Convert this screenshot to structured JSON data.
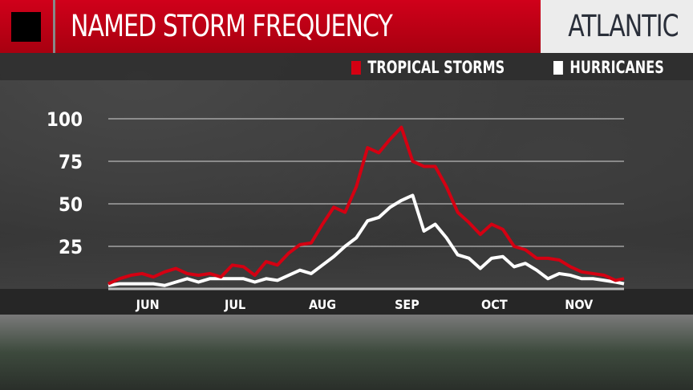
{
  "header": {
    "title": "NAMED STORM FREQUENCY",
    "region": "ATLANTIC"
  },
  "colors": {
    "tropical_storms": "#d40012",
    "hurricanes": "#ffffff",
    "header": "#c20014"
  },
  "icons": {
    "logo": "black-square-icon"
  },
  "chart_data": {
    "type": "line",
    "title": "NAMED STORM FREQUENCY",
    "ylim": [
      0,
      100
    ],
    "yticks": [
      25,
      50,
      75,
      100
    ],
    "ytick_labels": [
      "25",
      "50",
      "75",
      "100"
    ],
    "xlim": [
      "06-01",
      "11-30"
    ],
    "xtick_labels": [
      "JUN",
      "JUL",
      "AUG",
      "SEP",
      "OCT",
      "NOV"
    ],
    "grid": true,
    "legend": "top-right",
    "x": [
      "06-01",
      "06-05",
      "06-09",
      "06-13",
      "06-17",
      "06-21",
      "06-25",
      "06-29",
      "07-03",
      "07-07",
      "07-11",
      "07-15",
      "07-19",
      "07-23",
      "07-27",
      "07-31",
      "08-04",
      "08-08",
      "08-12",
      "08-16",
      "08-20",
      "08-24",
      "08-28",
      "09-01",
      "09-05",
      "09-09",
      "09-13",
      "09-17",
      "09-21",
      "09-25",
      "09-29",
      "10-03",
      "10-07",
      "10-11",
      "10-15",
      "10-19",
      "10-23",
      "10-27",
      "10-31",
      "11-04",
      "11-08",
      "11-12",
      "11-16",
      "11-20",
      "11-24",
      "11-28",
      "12-02"
    ],
    "series": [
      {
        "name": "TROPICAL STORMS",
        "color": "#d40012",
        "values": [
          3,
          6,
          8,
          9,
          7,
          10,
          12,
          9,
          8,
          9,
          7,
          14,
          13,
          8,
          16,
          14,
          21,
          26,
          27,
          38,
          48,
          45,
          60,
          83,
          80,
          88,
          95,
          75,
          72,
          72,
          60,
          45,
          39,
          32,
          38,
          35,
          25,
          23,
          18,
          18,
          17,
          13,
          10,
          9,
          8,
          5,
          6
        ]
      },
      {
        "name": "HURRICANES",
        "color": "#ffffff",
        "values": [
          2,
          3,
          3,
          3,
          3,
          2,
          4,
          6,
          4,
          6,
          6,
          6,
          6,
          4,
          6,
          5,
          8,
          11,
          9,
          14,
          19,
          25,
          30,
          40,
          42,
          48,
          52,
          55,
          34,
          38,
          30,
          20,
          18,
          12,
          18,
          19,
          13,
          15,
          11,
          6,
          9,
          8,
          6,
          6,
          5,
          4,
          3
        ]
      }
    ]
  }
}
